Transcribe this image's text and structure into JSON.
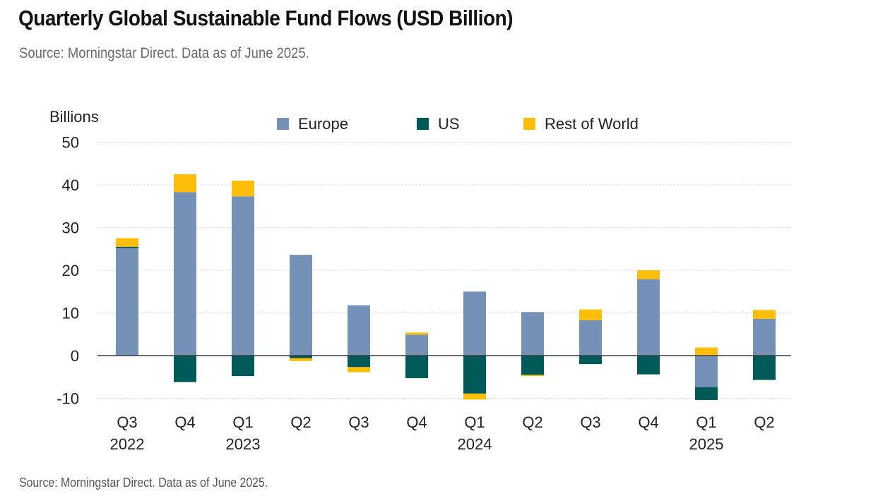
{
  "header": {
    "title": "Quarterly Global Sustainable Fund Flows (USD Billion)",
    "subtitle": "Source: Morningstar Direct. Data as of June 2025."
  },
  "footer": {
    "source": "Source: Morningstar Direct. Data as of June 2025."
  },
  "chart_data": {
    "type": "bar",
    "stacked": true,
    "title": "Quarterly Global Sustainable Fund Flows (USD Billion)",
    "ylabel": "Billions",
    "xlabel": "",
    "ylim": [
      -10,
      50
    ],
    "yticks": [
      50,
      40,
      30,
      20,
      10,
      0,
      -10
    ],
    "grid": true,
    "legend_position": "top",
    "categories": [
      {
        "quarter": "Q3",
        "year": "2022"
      },
      {
        "quarter": "Q4",
        "year": ""
      },
      {
        "quarter": "Q1",
        "year": "2023"
      },
      {
        "quarter": "Q2",
        "year": ""
      },
      {
        "quarter": "Q3",
        "year": ""
      },
      {
        "quarter": "Q4",
        "year": ""
      },
      {
        "quarter": "Q1",
        "year": "2024"
      },
      {
        "quarter": "Q2",
        "year": ""
      },
      {
        "quarter": "Q3",
        "year": ""
      },
      {
        "quarter": "Q4",
        "year": ""
      },
      {
        "quarter": "Q1",
        "year": "2025"
      },
      {
        "quarter": "Q2",
        "year": ""
      }
    ],
    "series": [
      {
        "name": "Europe",
        "color": "#7591b7",
        "values": [
          25.2,
          38.3,
          37.3,
          23.6,
          11.8,
          4.9,
          15.0,
          10.2,
          8.3,
          17.9,
          -7.4,
          8.6
        ]
      },
      {
        "name": "US",
        "color": "#005a58",
        "values": [
          0.3,
          -6.2,
          -4.8,
          -0.6,
          -2.7,
          -5.3,
          -8.9,
          -4.5,
          -2.0,
          -4.4,
          -3.0,
          -5.7
        ]
      },
      {
        "name": "Rest of World",
        "color": "#fdbd09",
        "values": [
          2.0,
          4.2,
          3.7,
          -0.7,
          -1.2,
          0.5,
          -1.4,
          -0.3,
          2.5,
          2.1,
          1.9,
          2.1
        ]
      }
    ]
  }
}
